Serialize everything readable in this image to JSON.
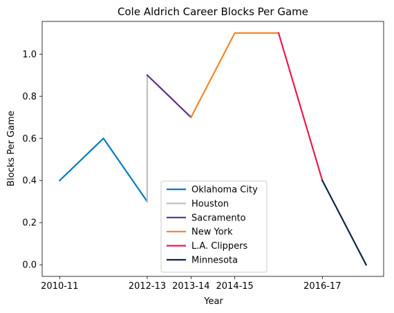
{
  "chart_data": {
    "type": "line",
    "title": "Cole Aldrich Career Blocks Per Game",
    "xlabel": "Year",
    "ylabel": "Blocks Per Game",
    "x_ticks": [
      "2010-11",
      "2012-13",
      "2013-14",
      "2014-15",
      "2016-17"
    ],
    "y_ticks": [
      "0.0",
      "0.2",
      "0.4",
      "0.6",
      "0.8",
      "1.0"
    ],
    "ylim": [
      -0.055,
      1.155
    ],
    "grid": false,
    "legend_position": "bottom-center",
    "series": [
      {
        "name": "Oklahoma City",
        "color": "#007AC1",
        "points": [
          {
            "x": "2010-11",
            "y": 0.4
          },
          {
            "x": "2011-12",
            "y": 0.6
          },
          {
            "x": "2012-13",
            "y": 0.3
          }
        ]
      },
      {
        "name": "Houston",
        "color": "#BEC0C2",
        "points": [
          {
            "x": "2012-13",
            "y": 0.3
          },
          {
            "x": "2012-13",
            "y": 0.9
          }
        ]
      },
      {
        "name": "Sacramento",
        "color": "#5A2D81",
        "points": [
          {
            "x": "2012-13",
            "y": 0.9
          },
          {
            "x": "2013-14",
            "y": 0.7
          }
        ]
      },
      {
        "name": "New York",
        "color": "#F58426",
        "points": [
          {
            "x": "2013-14",
            "y": 0.7
          },
          {
            "x": "2014-15",
            "y": 1.1
          },
          {
            "x": "2015-16",
            "y": 1.1
          }
        ]
      },
      {
        "name": "L.A. Clippers",
        "color": "#ED174C",
        "points": [
          {
            "x": "2015-16",
            "y": 1.1
          },
          {
            "x": "2016-17",
            "y": 0.4
          }
        ]
      },
      {
        "name": "Minnesota",
        "color": "#0C2340",
        "points": [
          {
            "x": "2016-17",
            "y": 0.4
          },
          {
            "x": "2017-18",
            "y": 0.0
          }
        ]
      }
    ]
  }
}
